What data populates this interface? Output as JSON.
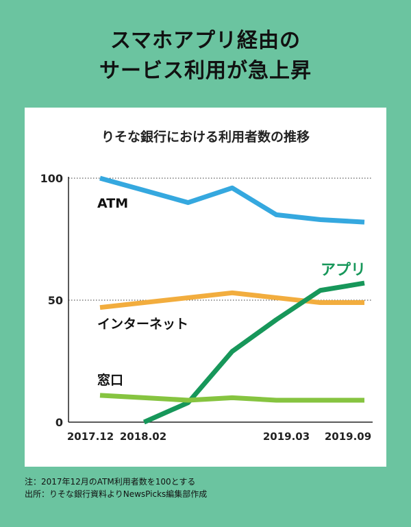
{
  "headline": {
    "line1": "スマホアプリ経由の",
    "line2": "サービス利用が急上昇"
  },
  "chart_data": {
    "type": "line",
    "title": "りそな銀行における利用者数の推移",
    "x_labels": [
      "2017.12",
      "2018.02",
      "2019.03",
      "2019.09"
    ],
    "x_index_range": [
      0,
      7
    ],
    "x_label_positions": [
      0,
      1,
      5,
      6
    ],
    "ylim": [
      0,
      100
    ],
    "y_ticks": [
      0,
      50,
      100
    ],
    "grid": "dotted at 50 and 100",
    "series": [
      {
        "name": "ATM",
        "color": "#35a8df",
        "x": [
          0,
          1,
          2,
          3,
          4,
          5,
          6
        ],
        "values": [
          100,
          95,
          90,
          96,
          85,
          83,
          82
        ]
      },
      {
        "name": "インターネット",
        "color": "#f2ad3e",
        "x": [
          0,
          1,
          2,
          3,
          4,
          5,
          6
        ],
        "values": [
          47,
          49,
          51,
          53,
          51,
          49,
          49
        ]
      },
      {
        "name": "アプリ",
        "color": "#17975a",
        "x": [
          1,
          2,
          3,
          4,
          5,
          6
        ],
        "values": [
          0,
          8,
          29,
          42,
          54,
          57
        ]
      },
      {
        "name": "窓口",
        "color": "#86c440",
        "x": [
          0,
          1,
          2,
          3,
          4,
          5,
          6
        ],
        "values": [
          11,
          10,
          9,
          10,
          9,
          9,
          9
        ]
      }
    ]
  },
  "notes": {
    "line1": "注：2017年12月のATM利用者数を100とする",
    "line2": "出所：りそな銀行資料よりNewsPicks編集部作成"
  }
}
